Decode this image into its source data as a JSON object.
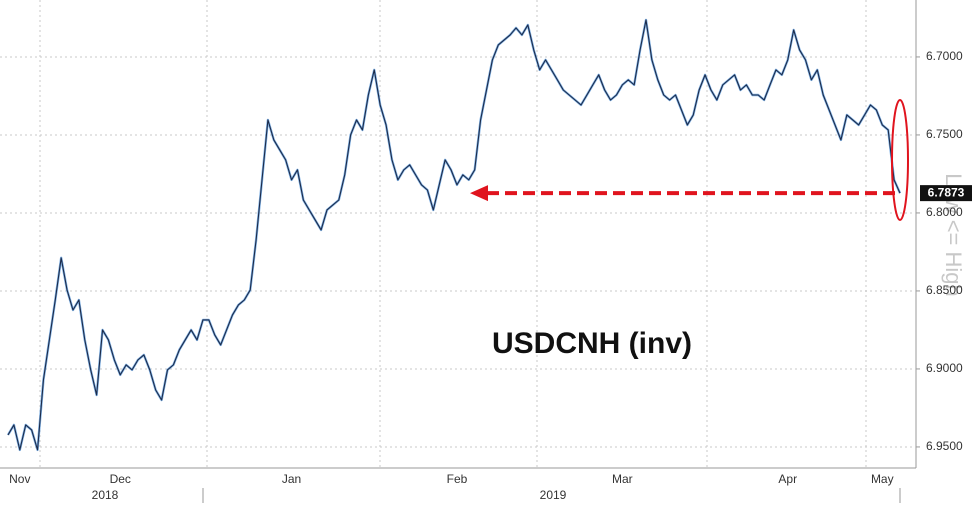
{
  "chart_data": {
    "type": "line",
    "annotation": "USDCNH (inv)",
    "y_label": "Low <= High",
    "year_labels": [
      "2018",
      "2019"
    ],
    "color": "#1c2b4a",
    "highlight_color": "#e0141e",
    "inverted": true,
    "grid": true,
    "ylim": [
      6.6635,
      6.9635
    ],
    "yticks": [
      {
        "value": 6.7,
        "label": "6.7000"
      },
      {
        "value": 6.75,
        "label": "6.7500"
      },
      {
        "value": 6.8,
        "label": "6.8000"
      },
      {
        "value": 6.85,
        "label": "6.8500"
      },
      {
        "value": 6.9,
        "label": "6.9000"
      },
      {
        "value": 6.95,
        "label": "6.9500"
      }
    ],
    "categories": [
      null,
      null,
      "Nov",
      null,
      null,
      null,
      null,
      null,
      null,
      null,
      null,
      null,
      null,
      null,
      null,
      null,
      null,
      null,
      null,
      "Dec",
      null,
      null,
      null,
      null,
      null,
      null,
      null,
      null,
      null,
      null,
      null,
      null,
      null,
      null,
      null,
      null,
      null,
      null,
      null,
      null,
      null,
      null,
      null,
      null,
      null,
      null,
      null,
      null,
      "Jan",
      null,
      null,
      null,
      null,
      null,
      null,
      null,
      null,
      null,
      null,
      null,
      null,
      null,
      null,
      null,
      null,
      null,
      null,
      null,
      null,
      null,
      null,
      null,
      null,
      null,
      null,
      null,
      "Feb",
      null,
      null,
      null,
      null,
      null,
      null,
      null,
      null,
      null,
      null,
      null,
      null,
      null,
      null,
      null,
      null,
      null,
      null,
      null,
      null,
      null,
      null,
      null,
      null,
      null,
      null,
      null,
      "Mar",
      null,
      null,
      null,
      null,
      null,
      null,
      null,
      null,
      null,
      null,
      null,
      null,
      null,
      null,
      null,
      null,
      null,
      null,
      null,
      null,
      null,
      null,
      null,
      null,
      null,
      null,
      null,
      "Apr",
      null,
      null,
      null,
      null,
      null,
      null,
      null,
      null,
      null,
      null,
      null,
      null,
      null,
      null,
      null,
      "May",
      null,
      null,
      null
    ],
    "values": [
      6.9423,
      6.9359,
      6.9519,
      6.9359,
      6.9391,
      6.9519,
      6.907,
      6.8814,
      6.8558,
      6.8288,
      6.8494,
      6.8622,
      6.8558,
      6.8814,
      6.9006,
      6.9167,
      6.875,
      6.8814,
      6.8942,
      6.9038,
      6.8974,
      6.9006,
      6.8942,
      6.891,
      6.9006,
      6.9135,
      6.9199,
      6.9006,
      6.8974,
      6.8878,
      6.8814,
      6.875,
      6.8814,
      6.8686,
      6.8686,
      6.8782,
      6.8846,
      6.875,
      6.8654,
      6.859,
      6.8558,
      6.8494,
      6.8173,
      6.7788,
      6.7404,
      6.7532,
      6.7596,
      6.766,
      6.7788,
      6.7724,
      6.7917,
      6.7981,
      6.8045,
      6.8109,
      6.7981,
      6.7949,
      6.7917,
      6.7756,
      6.75,
      6.7404,
      6.7468,
      6.7244,
      6.7083,
      6.7308,
      6.7436,
      6.766,
      6.7788,
      6.7724,
      6.7692,
      6.7756,
      6.782,
      6.7853,
      6.7981,
      6.782,
      6.766,
      6.7724,
      6.782,
      6.7756,
      6.7788,
      6.7724,
      6.7404,
      6.7212,
      6.7019,
      6.6923,
      6.6891,
      6.6859,
      6.6814,
      6.6859,
      6.6795,
      6.6955,
      6.7083,
      6.7019,
      6.7083,
      6.7147,
      6.7212,
      6.7244,
      6.7276,
      6.7308,
      6.7244,
      6.7179,
      6.7115,
      6.7212,
      6.7276,
      6.7244,
      6.7179,
      6.7147,
      6.7179,
      6.6955,
      6.6763,
      6.7019,
      6.7147,
      6.7244,
      6.7276,
      6.7244,
      6.734,
      6.7436,
      6.7372,
      6.7212,
      6.7115,
      6.7212,
      6.7276,
      6.7179,
      6.7147,
      6.7115,
      6.7212,
      6.7179,
      6.7244,
      6.7244,
      6.7276,
      6.7179,
      6.7083,
      6.7115,
      6.7019,
      6.6827,
      6.6955,
      6.7019,
      6.7147,
      6.7083,
      6.7244,
      6.734,
      6.7436,
      6.7532,
      6.7372,
      6.7404,
      6.7436,
      6.7372,
      6.7308,
      6.734,
      6.7436,
      6.7468,
      6.7788,
      6.7873
    ]
  }
}
